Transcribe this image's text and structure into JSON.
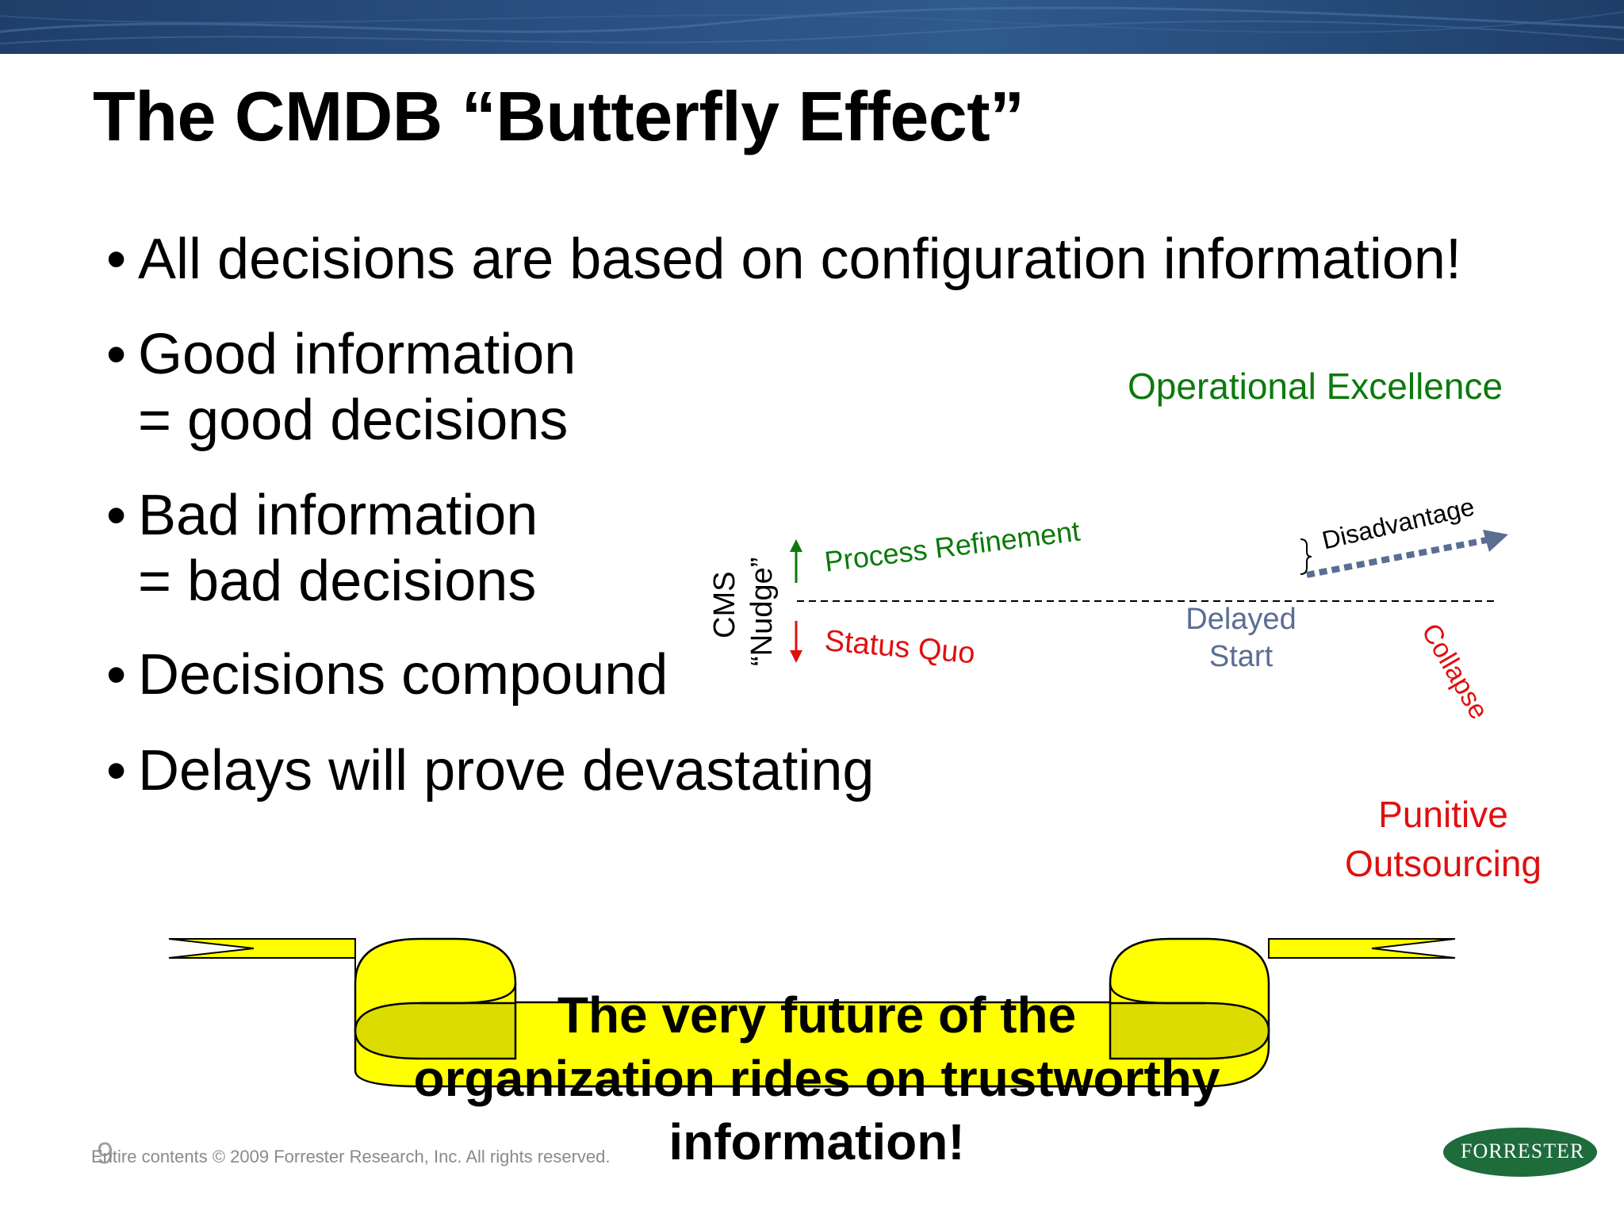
{
  "slide": {
    "title": "The CMDB “Butterfly Effect”",
    "bullets": [
      {
        "lines": [
          "All decisions are based on configuration information!"
        ]
      },
      {
        "lines": [
          "Good information",
          "= good decisions"
        ]
      },
      {
        "lines": [
          "Bad information",
          "= bad decisions"
        ]
      },
      {
        "lines": [
          "Decisions compound"
        ]
      },
      {
        "lines": [
          "Delays will prove devastating"
        ]
      }
    ]
  },
  "diagram": {
    "operational_excellence": "Operational Excellence",
    "cms_label": "CMS",
    "nudge_label": "“Nudge”",
    "process_refinement": "Process Refinement",
    "status_quo": "Status Quo",
    "delayed_start_line1": "Delayed",
    "delayed_start_line2": "Start",
    "disadvantage": "Disadvantage",
    "collapse": "Collapse",
    "punitive_line1": "Punitive",
    "punitive_line2": "Outsourcing",
    "colors": {
      "green": "#0b7a0b",
      "red": "#e01010",
      "blue": "#5a6e94",
      "black": "#000000"
    }
  },
  "banner": {
    "line1": "The very future of the",
    "line2": "organization rides on trustworthy",
    "line3": "information!",
    "color": "#ffff00"
  },
  "footer": {
    "page_number": "9",
    "copyright": "Entire contents © 2009  Forrester Research, Inc. All rights reserved.",
    "logo_text": "FORRESTER"
  }
}
